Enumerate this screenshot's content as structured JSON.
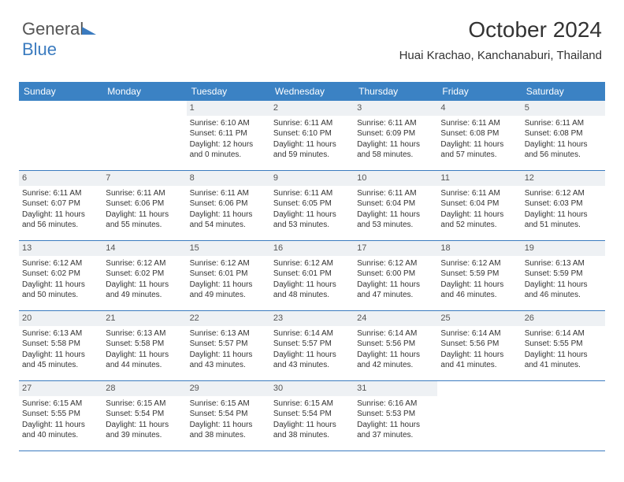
{
  "logo": {
    "textA": "General",
    "textB": "Blue"
  },
  "title": "October 2024",
  "subtitle": "Huai Krachao, Kanchanaburi, Thailand",
  "colors": {
    "header_bg": "#3b82c4",
    "header_text": "#ffffff",
    "daynum_bg": "#eef1f4",
    "border": "#3b7bbf",
    "text": "#333333"
  },
  "dayHeaders": [
    "Sunday",
    "Monday",
    "Tuesday",
    "Wednesday",
    "Thursday",
    "Friday",
    "Saturday"
  ],
  "weeks": [
    [
      {
        "n": "",
        "empty": true
      },
      {
        "n": "",
        "empty": true
      },
      {
        "n": "1",
        "sr": "Sunrise: 6:10 AM",
        "ss": "Sunset: 6:11 PM",
        "dl": "Daylight: 12 hours and 0 minutes."
      },
      {
        "n": "2",
        "sr": "Sunrise: 6:11 AM",
        "ss": "Sunset: 6:10 PM",
        "dl": "Daylight: 11 hours and 59 minutes."
      },
      {
        "n": "3",
        "sr": "Sunrise: 6:11 AM",
        "ss": "Sunset: 6:09 PM",
        "dl": "Daylight: 11 hours and 58 minutes."
      },
      {
        "n": "4",
        "sr": "Sunrise: 6:11 AM",
        "ss": "Sunset: 6:08 PM",
        "dl": "Daylight: 11 hours and 57 minutes."
      },
      {
        "n": "5",
        "sr": "Sunrise: 6:11 AM",
        "ss": "Sunset: 6:08 PM",
        "dl": "Daylight: 11 hours and 56 minutes."
      }
    ],
    [
      {
        "n": "6",
        "sr": "Sunrise: 6:11 AM",
        "ss": "Sunset: 6:07 PM",
        "dl": "Daylight: 11 hours and 56 minutes."
      },
      {
        "n": "7",
        "sr": "Sunrise: 6:11 AM",
        "ss": "Sunset: 6:06 PM",
        "dl": "Daylight: 11 hours and 55 minutes."
      },
      {
        "n": "8",
        "sr": "Sunrise: 6:11 AM",
        "ss": "Sunset: 6:06 PM",
        "dl": "Daylight: 11 hours and 54 minutes."
      },
      {
        "n": "9",
        "sr": "Sunrise: 6:11 AM",
        "ss": "Sunset: 6:05 PM",
        "dl": "Daylight: 11 hours and 53 minutes."
      },
      {
        "n": "10",
        "sr": "Sunrise: 6:11 AM",
        "ss": "Sunset: 6:04 PM",
        "dl": "Daylight: 11 hours and 53 minutes."
      },
      {
        "n": "11",
        "sr": "Sunrise: 6:11 AM",
        "ss": "Sunset: 6:04 PM",
        "dl": "Daylight: 11 hours and 52 minutes."
      },
      {
        "n": "12",
        "sr": "Sunrise: 6:12 AM",
        "ss": "Sunset: 6:03 PM",
        "dl": "Daylight: 11 hours and 51 minutes."
      }
    ],
    [
      {
        "n": "13",
        "sr": "Sunrise: 6:12 AM",
        "ss": "Sunset: 6:02 PM",
        "dl": "Daylight: 11 hours and 50 minutes."
      },
      {
        "n": "14",
        "sr": "Sunrise: 6:12 AM",
        "ss": "Sunset: 6:02 PM",
        "dl": "Daylight: 11 hours and 49 minutes."
      },
      {
        "n": "15",
        "sr": "Sunrise: 6:12 AM",
        "ss": "Sunset: 6:01 PM",
        "dl": "Daylight: 11 hours and 49 minutes."
      },
      {
        "n": "16",
        "sr": "Sunrise: 6:12 AM",
        "ss": "Sunset: 6:01 PM",
        "dl": "Daylight: 11 hours and 48 minutes."
      },
      {
        "n": "17",
        "sr": "Sunrise: 6:12 AM",
        "ss": "Sunset: 6:00 PM",
        "dl": "Daylight: 11 hours and 47 minutes."
      },
      {
        "n": "18",
        "sr": "Sunrise: 6:12 AM",
        "ss": "Sunset: 5:59 PM",
        "dl": "Daylight: 11 hours and 46 minutes."
      },
      {
        "n": "19",
        "sr": "Sunrise: 6:13 AM",
        "ss": "Sunset: 5:59 PM",
        "dl": "Daylight: 11 hours and 46 minutes."
      }
    ],
    [
      {
        "n": "20",
        "sr": "Sunrise: 6:13 AM",
        "ss": "Sunset: 5:58 PM",
        "dl": "Daylight: 11 hours and 45 minutes."
      },
      {
        "n": "21",
        "sr": "Sunrise: 6:13 AM",
        "ss": "Sunset: 5:58 PM",
        "dl": "Daylight: 11 hours and 44 minutes."
      },
      {
        "n": "22",
        "sr": "Sunrise: 6:13 AM",
        "ss": "Sunset: 5:57 PM",
        "dl": "Daylight: 11 hours and 43 minutes."
      },
      {
        "n": "23",
        "sr": "Sunrise: 6:14 AM",
        "ss": "Sunset: 5:57 PM",
        "dl": "Daylight: 11 hours and 43 minutes."
      },
      {
        "n": "24",
        "sr": "Sunrise: 6:14 AM",
        "ss": "Sunset: 5:56 PM",
        "dl": "Daylight: 11 hours and 42 minutes."
      },
      {
        "n": "25",
        "sr": "Sunrise: 6:14 AM",
        "ss": "Sunset: 5:56 PM",
        "dl": "Daylight: 11 hours and 41 minutes."
      },
      {
        "n": "26",
        "sr": "Sunrise: 6:14 AM",
        "ss": "Sunset: 5:55 PM",
        "dl": "Daylight: 11 hours and 41 minutes."
      }
    ],
    [
      {
        "n": "27",
        "sr": "Sunrise: 6:15 AM",
        "ss": "Sunset: 5:55 PM",
        "dl": "Daylight: 11 hours and 40 minutes."
      },
      {
        "n": "28",
        "sr": "Sunrise: 6:15 AM",
        "ss": "Sunset: 5:54 PM",
        "dl": "Daylight: 11 hours and 39 minutes."
      },
      {
        "n": "29",
        "sr": "Sunrise: 6:15 AM",
        "ss": "Sunset: 5:54 PM",
        "dl": "Daylight: 11 hours and 38 minutes."
      },
      {
        "n": "30",
        "sr": "Sunrise: 6:15 AM",
        "ss": "Sunset: 5:54 PM",
        "dl": "Daylight: 11 hours and 38 minutes."
      },
      {
        "n": "31",
        "sr": "Sunrise: 6:16 AM",
        "ss": "Sunset: 5:53 PM",
        "dl": "Daylight: 11 hours and 37 minutes."
      },
      {
        "n": "",
        "empty": true
      },
      {
        "n": "",
        "empty": true
      }
    ]
  ]
}
